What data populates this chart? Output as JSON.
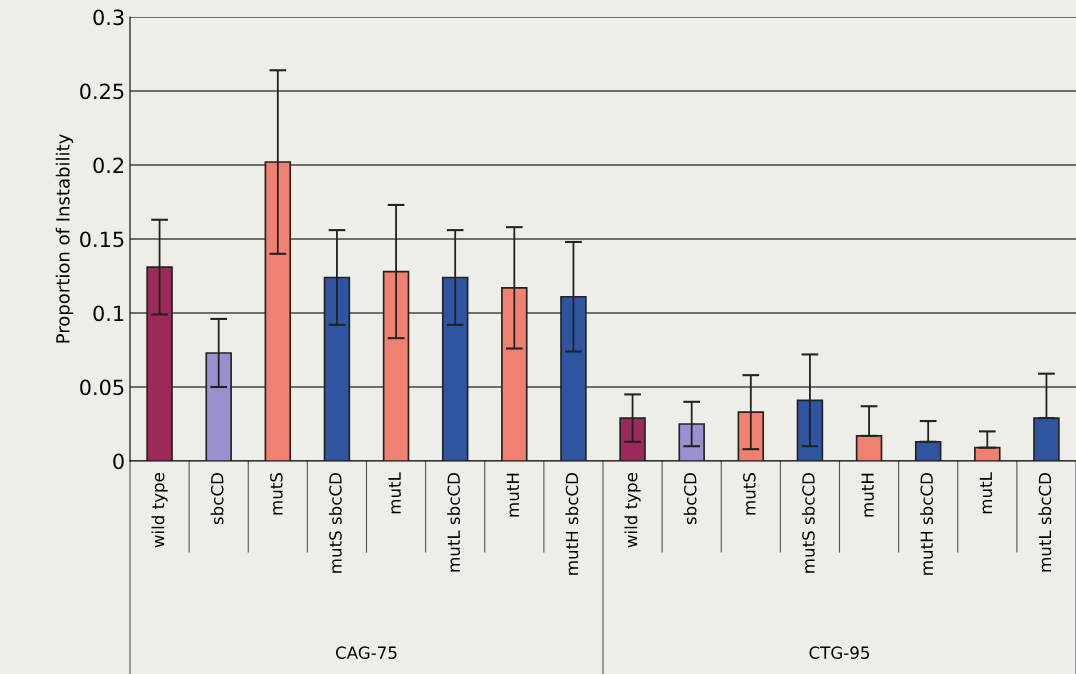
{
  "chart_data": {
    "type": "bar",
    "ylabel": "Proportion of Instability",
    "categories": [
      "wild type",
      "sbcCD",
      "mutS",
      "mutS sbcCD",
      "mutL",
      "mutL sbcCD",
      "mutH",
      "mutH sbcCD",
      "wild type",
      "sbcCD",
      "mutS",
      "mutS sbcCD",
      "mutH",
      "mutH sbcCD",
      "mutL",
      "mutL sbcCD"
    ],
    "values": [
      0.131,
      0.073,
      0.202,
      0.124,
      0.128,
      0.124,
      0.117,
      0.111,
      0.029,
      0.025,
      0.033,
      0.041,
      0.017,
      0.013,
      0.009,
      0.029
    ],
    "errors": [
      0.032,
      0.023,
      0.062,
      0.032,
      0.045,
      0.032,
      0.041,
      0.037,
      0.016,
      0.015,
      0.025,
      0.031,
      [
        0.017,
        0.037
      ],
      [
        0.013,
        0.027
      ],
      [
        0.009,
        0.02
      ],
      [
        0.029,
        0.059
      ]
    ],
    "colors": [
      "#9b2a5a",
      "#9b8fd0",
      "#f08070",
      "#2f55a0",
      "#f08070",
      "#2f55a0",
      "#f08070",
      "#2f55a0",
      "#9b2a5a",
      "#9b8fd0",
      "#f08070",
      "#2f55a0",
      "#f08070",
      "#2f55a0",
      "#f08070",
      "#2f55a0"
    ],
    "annotations": [
      "CAG-75",
      "CTG-95"
    ],
    "ylim": [
      0,
      0.3
    ],
    "yticks": [
      0,
      0.05,
      0.1,
      0.15,
      0.2,
      0.25,
      0.3
    ],
    "grid": "y",
    "legend": false
  }
}
